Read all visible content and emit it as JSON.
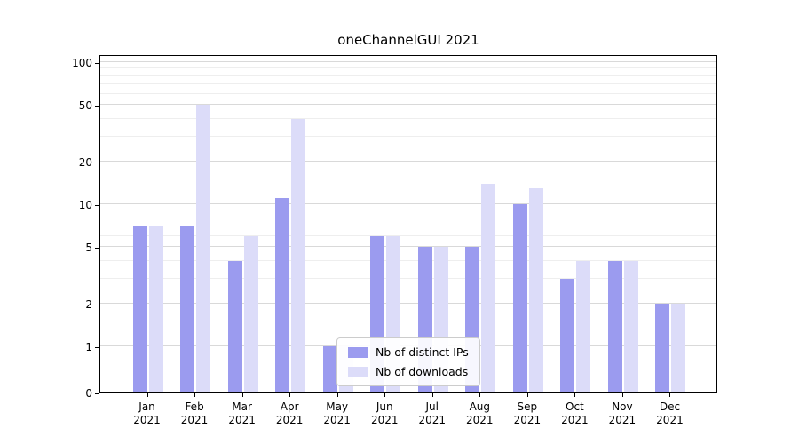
{
  "chart_data": {
    "type": "bar",
    "title": "oneChannelGUI 2021",
    "categories": [
      "Jan 2021",
      "Feb 2021",
      "Mar 2021",
      "Apr 2021",
      "May 2021",
      "Jun 2021",
      "Jul 2021",
      "Aug 2021",
      "Sep 2021",
      "Oct 2021",
      "Nov 2021",
      "Dec 2021"
    ],
    "series": [
      {
        "name": "Nb of distinct IPs",
        "color": "#9b9bef",
        "values": [
          7,
          7,
          4,
          11,
          1,
          6,
          5,
          5,
          10,
          3,
          4,
          2
        ]
      },
      {
        "name": "Nb of downloads",
        "color": "#dcdcf9",
        "values": [
          7,
          50,
          6,
          40,
          1,
          6,
          5,
          14,
          13,
          4,
          4,
          2
        ]
      }
    ],
    "yscale": "log",
    "ylim": [
      0,
      100
    ],
    "yticks": [
      0,
      1,
      2,
      5,
      10,
      20,
      50,
      100
    ],
    "minor_gridlines": [
      3,
      4,
      6,
      7,
      8,
      9,
      30,
      40,
      60,
      70,
      80,
      90
    ],
    "grid": "horizontal",
    "legend_position": "lower center"
  }
}
